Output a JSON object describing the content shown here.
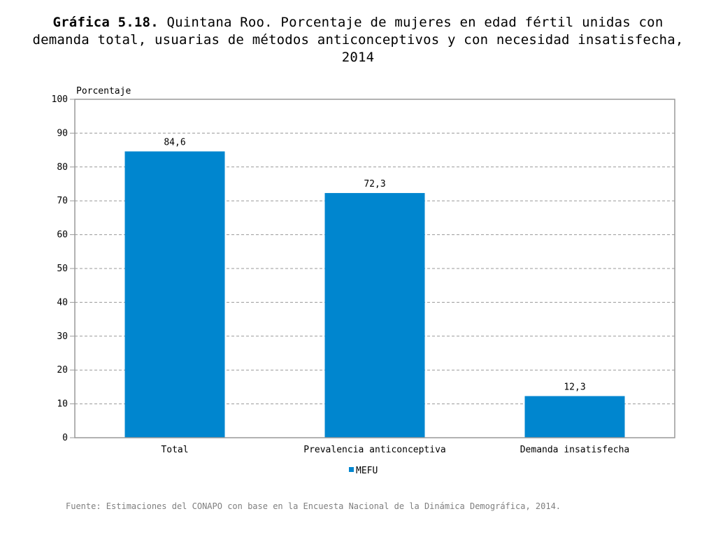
{
  "title": {
    "prefix": "Gráfica 5.18.",
    "text": "Quintana Roo. Porcentaje de mujeres en edad fértil unidas con demanda total, usuarias de métodos anticonceptivos y con necesidad insatisfecha, 2014"
  },
  "source": "Fuente: Estimaciones del CONAPO con base en la Encuesta Nacional de la Dinámica Demográfica, 2014.",
  "colors": {
    "bar": "#0086cf",
    "grid": "#999999",
    "frame": "#999999"
  },
  "chart_data": {
    "type": "bar",
    "ylabel": "Porcentaje",
    "xlabel": "",
    "ylim": [
      0,
      100
    ],
    "yticks": [
      0,
      10,
      20,
      30,
      40,
      50,
      60,
      70,
      80,
      90,
      100
    ],
    "grid": true,
    "legend_position": "bottom",
    "categories": [
      "Total",
      "Prevalencia anticonceptiva",
      "Demanda insatisfecha"
    ],
    "series": [
      {
        "name": "MEFU",
        "values": [
          84.6,
          72.3,
          12.3
        ],
        "labels": [
          "84,6",
          "72,3",
          "12,3"
        ]
      }
    ]
  }
}
